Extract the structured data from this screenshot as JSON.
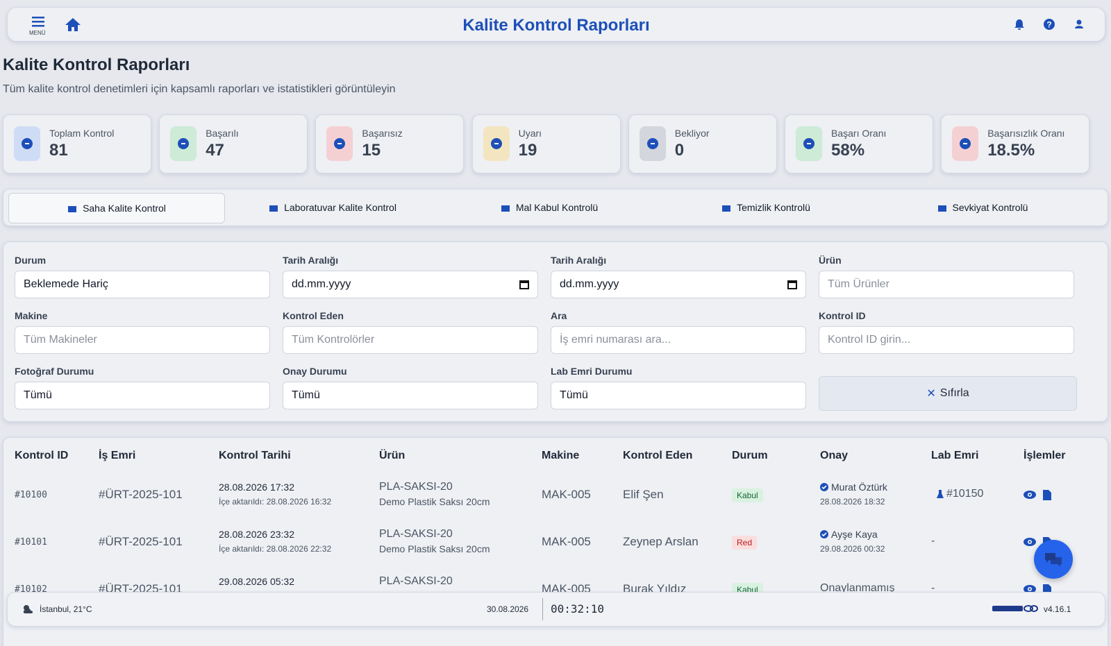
{
  "header": {
    "menu_label": "MENÜ",
    "title": "Kalite Kontrol Raporları"
  },
  "page": {
    "title": "Kalite Kontrol Raporları",
    "subtitle": "Tüm kalite kontrol denetimleri için kapsamlı raporları ve istatistikleri görüntüleyin"
  },
  "stats": [
    {
      "label": "Toplam Kontrol",
      "value": "81"
    },
    {
      "label": "Başarılı",
      "value": "47"
    },
    {
      "label": "Başarısız",
      "value": "15"
    },
    {
      "label": "Uyarı",
      "value": "19"
    },
    {
      "label": "Bekliyor",
      "value": "0"
    },
    {
      "label": "Başarı Oranı",
      "value": "58%"
    },
    {
      "label": "Başarısızlık Oranı",
      "value": "18.5%"
    }
  ],
  "tabs": [
    "Saha Kalite Kontrol",
    "Laboratuvar Kalite Kontrol",
    "Mal Kabul Kontrolü",
    "Temizlik Kontrolü",
    "Sevkiyat Kontrolü"
  ],
  "filters": [
    {
      "label": "Durum",
      "value": "Beklemede Hariç"
    },
    {
      "label": "Tarih Aralığı",
      "value": "dd.mm.yyyy"
    },
    {
      "label": "Tarih Aralığı",
      "value": "dd.mm.yyyy"
    },
    {
      "label": "Ürün",
      "placeholder": "Tüm Ürünler"
    },
    {
      "label": "Makine",
      "placeholder": "Tüm Makineler"
    },
    {
      "label": "Kontrol Eden",
      "placeholder": "Tüm Kontrolörler"
    },
    {
      "label": "Ara",
      "placeholder": "İş emri numarası ara..."
    },
    {
      "label": "Kontrol ID",
      "placeholder": "Kontrol ID girin..."
    },
    {
      "label": "Fotoğraf Durumu",
      "value": "Tümü"
    },
    {
      "label": "Onay Durumu",
      "value": "Tümü"
    },
    {
      "label": "Lab Emri Durumu",
      "value": "Tümü"
    }
  ],
  "reset_button": "Sıfırla",
  "table": {
    "columns": [
      "Kontrol ID",
      "İş Emri",
      "Kontrol Tarihi",
      "Ürün",
      "Makine",
      "Kontrol Eden",
      "Durum",
      "Onay",
      "Lab Emri",
      "İşlemler"
    ],
    "rows": [
      {
        "id": "#10100",
        "work_order": "#ÜRT-2025-101",
        "date": "28.08.2026 17:32",
        "imported": "İçe aktarıldı: 28.08.2026 16:32",
        "product_code": "PLA-SAKSI-20",
        "product_name": "Demo Plastik Saksı 20cm",
        "machine": "MAK-005",
        "inspector": "Elif Şen",
        "status": "Kabul",
        "approver": "Murat Öztürk",
        "approval_date": "28.08.2026 18:32",
        "lab": "#10150"
      },
      {
        "id": "#10101",
        "work_order": "#ÜRT-2025-101",
        "date": "28.08.2026 23:32",
        "imported": "İçe aktarıldı: 28.08.2026 22:32",
        "product_code": "PLA-SAKSI-20",
        "product_name": "Demo Plastik Saksı 20cm",
        "machine": "MAK-005",
        "inspector": "Zeynep Arslan",
        "status": "Red",
        "approver": "Ayşe Kaya",
        "approval_date": "29.08.2026 00:32",
        "lab": "-"
      },
      {
        "id": "#10102",
        "work_order": "#ÜRT-2025-101",
        "date": "29.08.2026 05:32",
        "product_code": "PLA-SAKSI-20",
        "machine": "MAK-005",
        "inspector": "Burak Yıldız",
        "status": "Kabul",
        "approval": "Onaylanmamış",
        "lab": "-"
      }
    ]
  },
  "footer": {
    "weather": "İstanbul, 21°C",
    "date": "30.08.2026",
    "time": "00:32:10",
    "version": "v4.16.1"
  }
}
